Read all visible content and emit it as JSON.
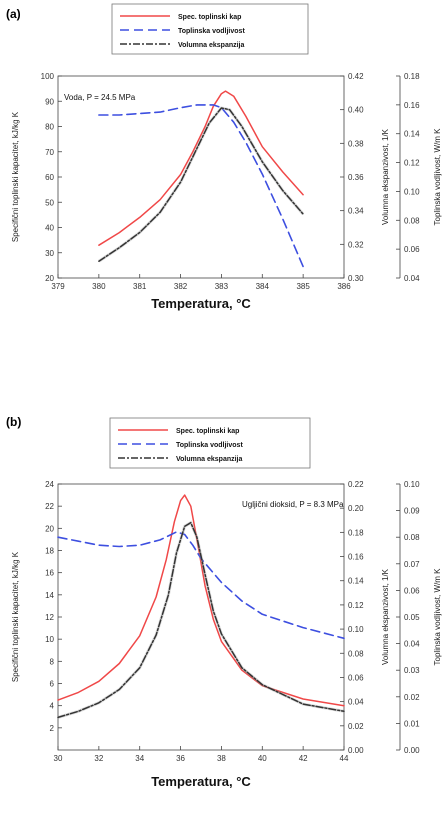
{
  "chart_data": [
    {
      "type": "line",
      "panel_label": "(a)",
      "legend": [
        "Spec. toplinski kap",
        "Toplinska vodljivost",
        "Volumna ekspanzija"
      ],
      "annotation": "Voda, P = 24.5 MPa",
      "xlabel": "Temperatura, °C",
      "y1label": "Specifični toplinski kapacitet, kJ/kg K",
      "y2label": "Volumna ekspanzivost, 1/K",
      "y3label": "Toplinska vodljivost, W/m K",
      "xlim": [
        379,
        386
      ],
      "xticks": [
        "379",
        "380",
        "381",
        "382",
        "383",
        "384",
        "385",
        "386"
      ],
      "y1lim": [
        20,
        100
      ],
      "y1ticks": [
        "20",
        "30",
        "40",
        "50",
        "60",
        "70",
        "80",
        "90",
        "100"
      ],
      "y2lim": [
        0.3,
        0.42
      ],
      "y2ticks": [
        "0.30",
        "0.32",
        "0.34",
        "0.36",
        "0.38",
        "0.40",
        "0.42"
      ],
      "y3lim": [
        0.04,
        0.18
      ],
      "y3ticks": [
        "0.04",
        "0.06",
        "0.08",
        "0.10",
        "0.12",
        "0.14",
        "0.16",
        "0.18"
      ],
      "series": [
        {
          "name": "Spec. toplinski kap",
          "axis": "y1",
          "color": "#f04848",
          "dash": "solid",
          "x": [
            380,
            380.5,
            381,
            381.5,
            382,
            382.3,
            382.6,
            382.8,
            383,
            383.1,
            383.3,
            383.6,
            384,
            384.5,
            385
          ],
          "y": [
            33,
            38,
            44,
            51,
            61,
            70,
            80,
            88,
            93,
            94,
            92,
            84,
            72,
            62,
            53
          ]
        },
        {
          "name": "Toplinska vodljivost",
          "axis": "y3",
          "color": "#3d4fe0",
          "dash": "dashed",
          "x": [
            380,
            380.5,
            381,
            381.5,
            382,
            382.4,
            382.8,
            383,
            383.3,
            383.6,
            384,
            384.5,
            385
          ],
          "y": [
            0.153,
            0.153,
            0.154,
            0.155,
            0.158,
            0.16,
            0.16,
            0.158,
            0.148,
            0.134,
            0.112,
            0.081,
            0.048
          ]
        },
        {
          "name": "Volumna ekspanzija",
          "axis": "y2",
          "color": "#333333",
          "dash": "dashdot",
          "x": [
            380,
            380.5,
            381,
            381.5,
            382,
            382.4,
            382.7,
            383,
            383.2,
            383.5,
            384,
            384.5,
            385
          ],
          "y": [
            0.31,
            0.318,
            0.327,
            0.339,
            0.357,
            0.377,
            0.392,
            0.401,
            0.4,
            0.39,
            0.369,
            0.352,
            0.338
          ]
        }
      ]
    },
    {
      "type": "line",
      "panel_label": "(b)",
      "legend": [
        "Spec. toplinski kap",
        "Toplinska vodljivost",
        "Volumna ekspanzija"
      ],
      "annotation": "Ugljični dioksid, P = 8.3 MPa",
      "xlabel": "Temperatura, °C",
      "y1label": "Specifični toplinski kapacitet, kJ/kg K",
      "y2label": "Volumna ekspanzivost, 1/K",
      "y3label": "Toplinska vodljivost, W/m K",
      "xlim": [
        30,
        44
      ],
      "xticks": [
        "30",
        "32",
        "34",
        "36",
        "38",
        "40",
        "42",
        "44"
      ],
      "y1lim": [
        0,
        24
      ],
      "y1ticks": [
        "2",
        "4",
        "6",
        "8",
        "10",
        "12",
        "14",
        "16",
        "18",
        "20",
        "22",
        "24"
      ],
      "y2lim": [
        0,
        0.22
      ],
      "y2ticks": [
        "0.00",
        "0.02",
        "0.04",
        "0.06",
        "0.08",
        "0.10",
        "0.12",
        "0.14",
        "0.16",
        "0.18",
        "0.20",
        "0.22"
      ],
      "y3lim": [
        0,
        0.1
      ],
      "y3ticks": [
        "0.00",
        "0.01",
        "0.02",
        "0.03",
        "0.04",
        "0.05",
        "0.06",
        "0.07",
        "0.08",
        "0.09",
        "0.10"
      ],
      "series": [
        {
          "name": "Spec. toplinski kap",
          "axis": "y1",
          "color": "#f04848",
          "dash": "solid",
          "x": [
            30,
            31,
            32,
            33,
            34,
            34.8,
            35.3,
            35.7,
            36,
            36.2,
            36.5,
            36.8,
            37.2,
            37.6,
            38,
            39,
            40,
            42,
            44
          ],
          "y": [
            4.5,
            5.2,
            6.2,
            7.8,
            10.3,
            13.8,
            17.2,
            20.6,
            22.5,
            23.0,
            22.0,
            19.0,
            14.8,
            11.8,
            9.8,
            7.2,
            5.8,
            4.6,
            4.0
          ]
        },
        {
          "name": "Toplinska vodljivost",
          "axis": "y3",
          "color": "#3d4fe0",
          "dash": "dashed",
          "x": [
            30,
            31,
            32,
            33,
            34,
            35,
            35.8,
            36.2,
            36.6,
            37,
            38,
            39,
            40,
            42,
            44
          ],
          "y": [
            0.08,
            0.0785,
            0.077,
            0.0765,
            0.077,
            0.079,
            0.082,
            0.081,
            0.077,
            0.072,
            0.063,
            0.056,
            0.051,
            0.046,
            0.042
          ]
        },
        {
          "name": "Volumna ekspanzija",
          "axis": "y2",
          "color": "#333333",
          "dash": "dashdot",
          "x": [
            30,
            31,
            32,
            33,
            34,
            34.8,
            35.4,
            35.8,
            36.2,
            36.5,
            36.8,
            37.2,
            37.6,
            38,
            39,
            40,
            42,
            44
          ],
          "y": [
            0.027,
            0.032,
            0.039,
            0.05,
            0.068,
            0.095,
            0.128,
            0.163,
            0.185,
            0.188,
            0.176,
            0.145,
            0.115,
            0.096,
            0.068,
            0.054,
            0.038,
            0.032
          ]
        }
      ]
    }
  ]
}
